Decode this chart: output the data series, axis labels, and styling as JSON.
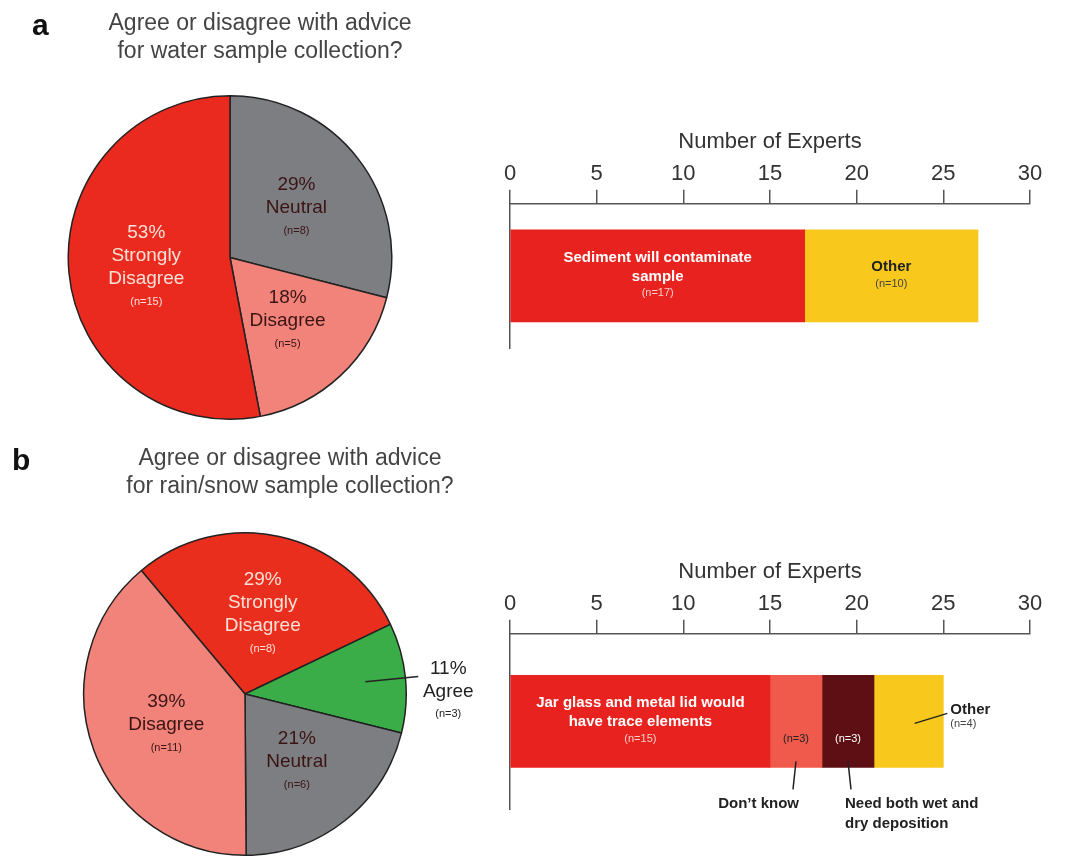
{
  "chart_data": [
    {
      "type": "pie",
      "title": "Agree or disagree with advice\nfor water sample collection?",
      "categories": [
        "Neutral",
        "Disagree",
        "Strongly Disagree"
      ],
      "values": [
        29,
        18,
        53
      ],
      "colors": [
        "#7d7e81",
        "#f2837a",
        "#ea2a1f"
      ],
      "value_labels": [
        "29%",
        "18%",
        "53%"
      ],
      "legend": false,
      "annotations": [
        "a",
        {
          "text": "(n=8)",
          "x": "Neutral"
        },
        {
          "text": "(n=5)",
          "x": "Disagree"
        },
        {
          "text": "(n=15)",
          "x": "Strongly Disagree"
        }
      ]
    },
    {
      "type": "bar",
      "orientation": "horizontal",
      "stacked": true,
      "xlabel": "Number of Experts",
      "categories": [
        null
      ],
      "xlim": [
        0,
        30
      ],
      "xticks": [
        0,
        5,
        10,
        15,
        20,
        25,
        30
      ],
      "grid": false,
      "legend": false,
      "series": [
        {
          "name": "Sediment will contaminate sample",
          "color": "#e8221f",
          "values": [
            17
          ],
          "value_labels": [
            "(n=17)"
          ]
        },
        {
          "name": "Other",
          "color": "#f8c91c",
          "values": [
            10
          ],
          "value_labels": [
            "(n=10)"
          ]
        }
      ]
    },
    {
      "type": "pie",
      "title": "Agree or disagree with advice\nfor rain/snow sample collection?",
      "categories": [
        "Strongly Disagree",
        "Agree",
        "Neutral",
        "Disagree"
      ],
      "values": [
        29,
        11,
        21,
        39
      ],
      "colors": [
        "#ea2e1e",
        "#3aad48",
        "#7d7e81",
        "#f2837a"
      ],
      "value_labels": [
        "29%",
        "11%",
        "21%",
        "39%"
      ],
      "legend": false,
      "annotations": [
        "b",
        {
          "text": "(n=8)",
          "x": "Strongly Disagree"
        },
        {
          "text": "(n=3)",
          "x": "Agree"
        },
        {
          "text": "(n=6)",
          "x": "Neutral"
        },
        {
          "text": "(n=11)",
          "x": "Disagree"
        }
      ]
    },
    {
      "type": "bar",
      "orientation": "horizontal",
      "stacked": true,
      "xlabel": "Number of Experts",
      "categories": [
        null
      ],
      "xlim": [
        0,
        30
      ],
      "xticks": [
        0,
        5,
        10,
        15,
        20,
        25,
        30
      ],
      "grid": false,
      "legend": false,
      "series": [
        {
          "name": "Jar glass and metal lid would have trace elements",
          "color": "#e8221f",
          "values": [
            15
          ],
          "value_labels": [
            "(n=15)"
          ]
        },
        {
          "name": "Don’t know",
          "color": "#ef5a4c",
          "values": [
            3
          ],
          "value_labels": [
            "(n=3)"
          ]
        },
        {
          "name": "Need both wet and dry deposition",
          "color": "#5e0f14",
          "values": [
            3
          ],
          "value_labels": [
            "(n=3)"
          ]
        },
        {
          "name": "Other",
          "color": "#f8c91c",
          "values": [
            4
          ],
          "value_labels": [
            "(n=4)"
          ]
        }
      ]
    }
  ]
}
